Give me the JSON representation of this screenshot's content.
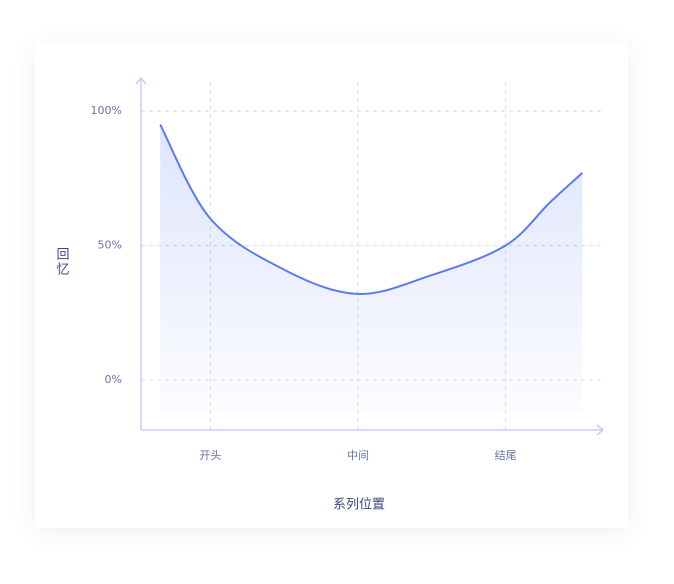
{
  "chart_data": {
    "type": "line",
    "x_label": "系列位置",
    "y_label": "回忆",
    "x": [
      0.66,
      1.0,
      1.5,
      2.0,
      2.5,
      3.0,
      3.3,
      3.52
    ],
    "series": [
      {
        "color": "#5b7cf0",
        "values": [
          95,
          60,
          41,
          32,
          39,
          50,
          66,
          77
        ]
      }
    ],
    "xlim": [
      0.53,
      3.66
    ],
    "xticks": [
      {
        "value": 1,
        "label": "开头"
      },
      {
        "value": 2,
        "label": "中间"
      },
      {
        "value": 3,
        "label": "结尾"
      }
    ],
    "ylim": [
      -18.6,
      112.3
    ],
    "yticks": [
      {
        "value": 0,
        "label": "0%"
      },
      {
        "value": 50,
        "label": "50%"
      },
      {
        "value": 100,
        "label": "100%"
      }
    ],
    "grid": true,
    "area": true
  }
}
